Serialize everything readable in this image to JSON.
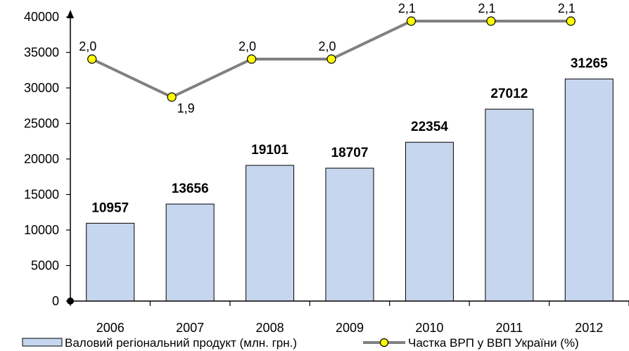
{
  "chart_data": {
    "type": "bar",
    "categories": [
      "2006",
      "2007",
      "2008",
      "2009",
      "2010",
      "2011",
      "2012"
    ],
    "ylim": [
      0,
      40000
    ],
    "yticks": [
      0,
      5000,
      10000,
      15000,
      20000,
      25000,
      30000,
      35000,
      40000
    ],
    "series": [
      {
        "name": "Валовий регіональний продукт (млн. грн.)",
        "type": "bar",
        "values": [
          10957,
          13656,
          19101,
          18707,
          22354,
          27012,
          31265
        ],
        "labels": [
          "10957",
          "13656",
          "19101",
          "18707",
          "22354",
          "27012",
          "31265"
        ],
        "color": "#c6d6ee",
        "edge_color": "#000000"
      },
      {
        "name": "Частка ВРП у ВВП України (%)",
        "type": "line",
        "values": [
          2.0,
          1.9,
          2.0,
          2.0,
          2.1,
          2.1,
          2.1
        ],
        "labels": [
          "2,0",
          "1,9",
          "2,0",
          "2,0",
          "2,1",
          "2,1",
          "2,1"
        ],
        "color": "#808080",
        "marker_color": "#ffff00"
      }
    ],
    "grid": false,
    "legend_position": "bottom"
  }
}
